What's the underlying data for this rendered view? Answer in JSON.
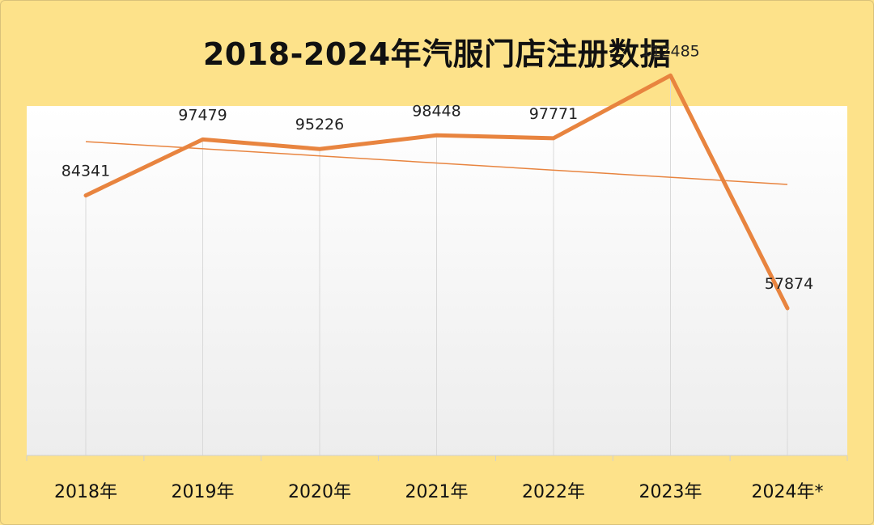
{
  "title": "2018-2024年汽服门店注册数据",
  "colors": {
    "background": "#fde28a",
    "plot_area": "#ffffff",
    "line": "#e8843f",
    "trend": "#e8843f",
    "grid": "#d9d9d9"
  },
  "chart_data": {
    "type": "line",
    "title": "2018-2024年汽服门店注册数据",
    "categories": [
      "2018年",
      "2019年",
      "2020年",
      "2021年",
      "2022年",
      "2023年",
      "2024年*"
    ],
    "series": [
      {
        "values": [
          84341,
          97479,
          95226,
          98448,
          97771,
          112485,
          57874
        ]
      }
    ],
    "data_labels": [
      "84341",
      "97479",
      "95226",
      "98448",
      "97771",
      "112485",
      "57874"
    ],
    "trendline": "linear",
    "xlabel": "",
    "ylabel": "",
    "grid": "vertical",
    "legend": "none"
  }
}
